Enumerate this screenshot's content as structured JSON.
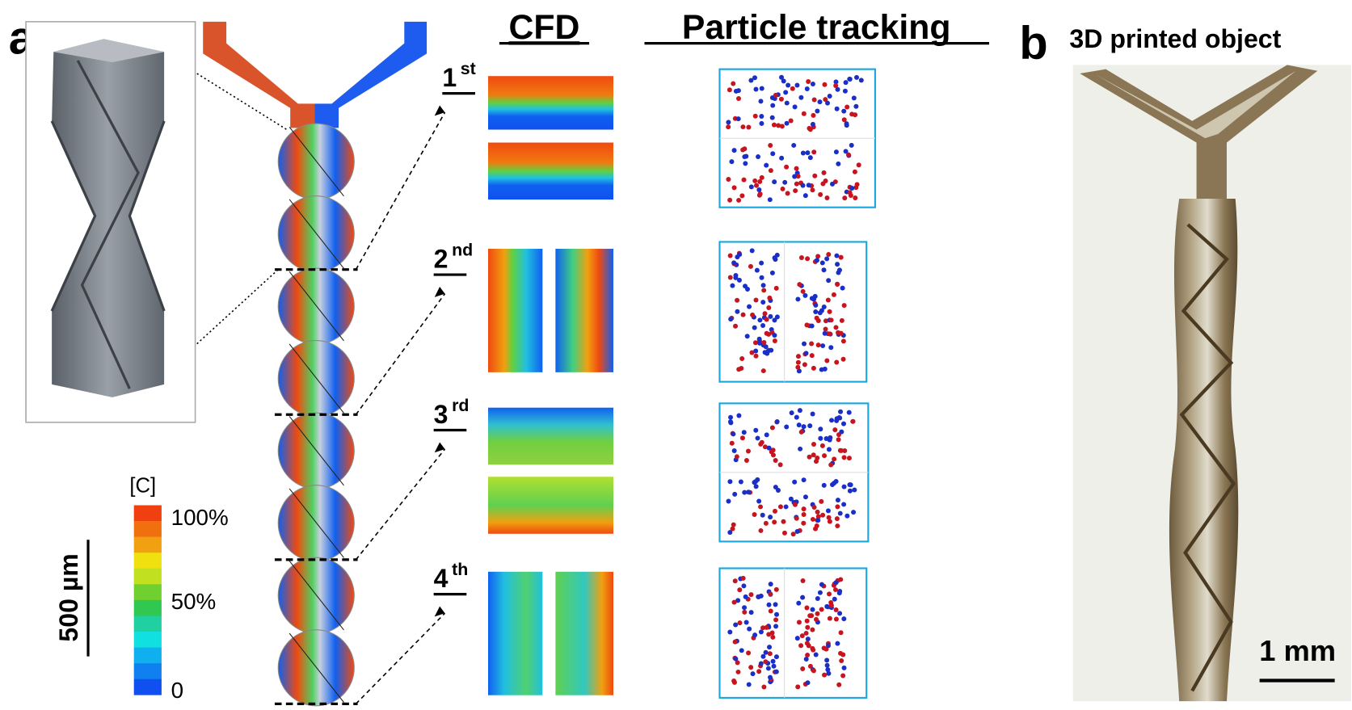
{
  "panel_a": {
    "label": "a",
    "headers": {
      "cfd": "CFD",
      "particle_tracking": "Particle tracking"
    },
    "sections": [
      {
        "number": "1",
        "suffix": "st"
      },
      {
        "number": "2",
        "suffix": "nd"
      },
      {
        "number": "3",
        "suffix": "rd"
      },
      {
        "number": "4",
        "suffix": "th"
      }
    ],
    "colorbar": {
      "title": "[C]",
      "labels": [
        "100%",
        "50%",
        "0"
      ]
    },
    "scale_bar": "500 µm"
  },
  "panel_b": {
    "label": "b",
    "title": "3D printed object",
    "scale_bar": "1 mm"
  }
}
